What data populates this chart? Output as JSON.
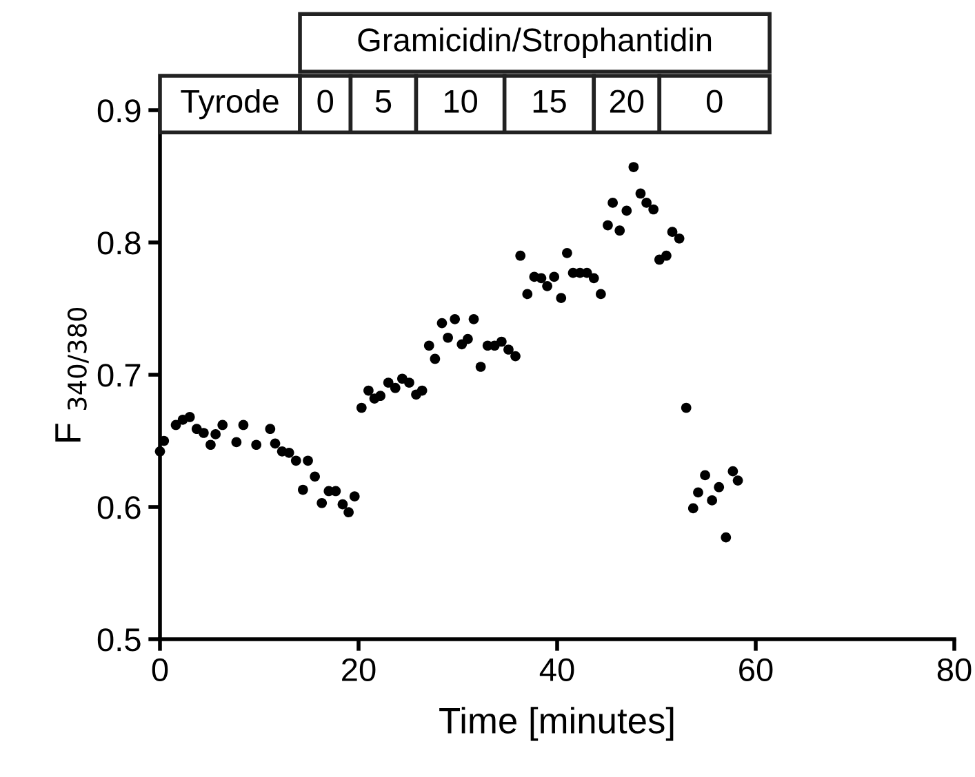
{
  "chart_data": {
    "type": "scatter",
    "xlabel": "Time [minutes]",
    "ylabel": "F $_{340/380}$",
    "xlim": [
      0,
      80
    ],
    "xticks": [
      0,
      20,
      40,
      60,
      80
    ],
    "ylim": [
      0.5,
      0.9
    ],
    "yticks": [
      0.5,
      0.6,
      0.7,
      0.8,
      0.9
    ],
    "marker": "circle",
    "grid": false,
    "legend": false,
    "series": [
      {
        "color": "#000000",
        "x": [
          0,
          0.4,
          1.6,
          2.3,
          3.0,
          3.7,
          4.4,
          5.1,
          5.6,
          6.3,
          7.7,
          8.4,
          9.7,
          11.1,
          11.6,
          12.3,
          13.0,
          13.7,
          14.4,
          14.9,
          15.6,
          16.3,
          17.0,
          17.7,
          18.4,
          19.0,
          19.6,
          20.3,
          21.0,
          21.6,
          22.2,
          23.0,
          23.7,
          24.4,
          25.1,
          25.8,
          26.4,
          27.1,
          27.7,
          28.4,
          29.0,
          29.7,
          30.4,
          31.0,
          31.6,
          32.3,
          33.0,
          33.7,
          34.4,
          35.1,
          35.8,
          36.3,
          37.0,
          37.7,
          38.4,
          39.0,
          39.7,
          40.4,
          41.0,
          41.6,
          42.3,
          43.0,
          43.7,
          44.4,
          45.1,
          45.6,
          46.3,
          47.0,
          47.7,
          48.4,
          49.0,
          49.7,
          50.3,
          51.0,
          51.6,
          52.3,
          53.0,
          53.7,
          54.2,
          54.9,
          55.6,
          56.3,
          57.0,
          57.7,
          58.2
        ],
        "values": [
          0.642,
          0.65,
          0.662,
          0.666,
          0.668,
          0.659,
          0.656,
          0.647,
          0.655,
          0.662,
          0.649,
          0.662,
          0.647,
          0.659,
          0.648,
          0.642,
          0.641,
          0.635,
          0.613,
          0.635,
          0.623,
          0.603,
          0.612,
          0.612,
          0.602,
          0.596,
          0.608,
          0.675,
          0.688,
          0.682,
          0.684,
          0.694,
          0.69,
          0.697,
          0.694,
          0.685,
          0.688,
          0.722,
          0.712,
          0.739,
          0.728,
          0.742,
          0.723,
          0.727,
          0.742,
          0.706,
          0.722,
          0.722,
          0.725,
          0.719,
          0.714,
          0.79,
          0.761,
          0.774,
          0.773,
          0.767,
          0.774,
          0.758,
          0.792,
          0.777,
          0.777,
          0.777,
          0.773,
          0.761,
          0.813,
          0.83,
          0.809,
          0.824,
          0.857,
          0.837,
          0.83,
          0.825,
          0.787,
          0.79,
          0.808,
          0.803,
          0.675,
          0.599,
          0.611,
          0.624,
          0.605,
          0.615,
          0.577,
          0.627,
          0.62
        ]
      }
    ],
    "bands": [
      {
        "axis": "x",
        "from": 0,
        "to": 14.1,
        "label": "Tyrode"
      },
      {
        "axis": "x",
        "from": 14.1,
        "to": 19.2,
        "label": "0"
      },
      {
        "axis": "x",
        "from": 19.2,
        "to": 25.8,
        "label": "5"
      },
      {
        "axis": "x",
        "from": 25.8,
        "to": 34.7,
        "label": "10"
      },
      {
        "axis": "x",
        "from": 34.7,
        "to": 43.7,
        "label": "15"
      },
      {
        "axis": "x",
        "from": 43.7,
        "to": 50.3,
        "label": "20"
      },
      {
        "axis": "x",
        "from": 50.3,
        "to": 61.4,
        "label": "0"
      }
    ],
    "annotations": [
      "Gramicidin/Strophantidin"
    ]
  }
}
